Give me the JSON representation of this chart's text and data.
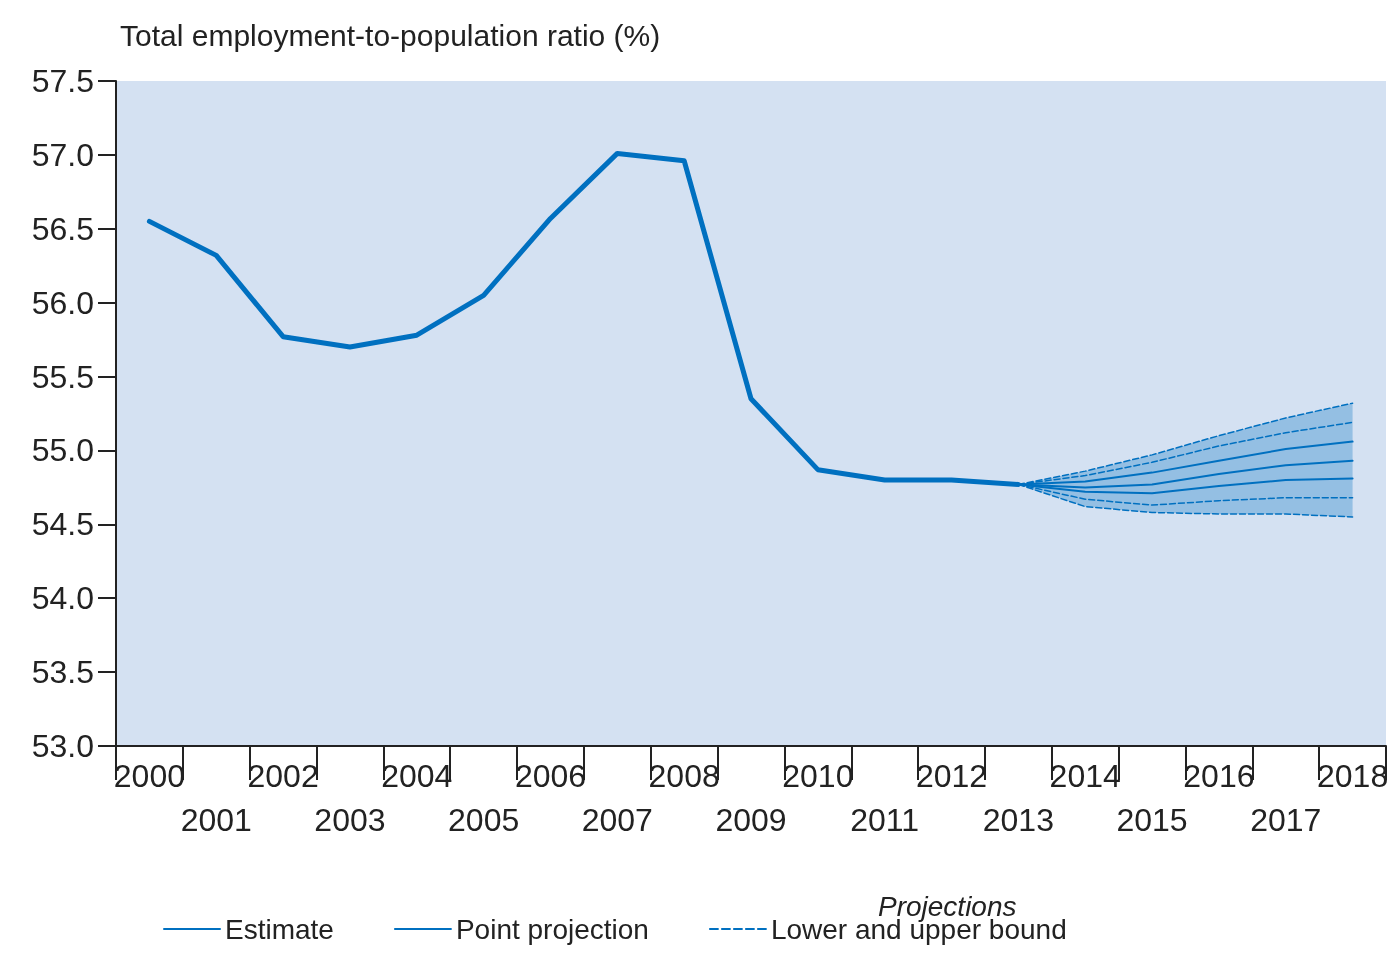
{
  "chart_data": {
    "type": "line",
    "ylabel": "Total employment-to-population ratio (%)",
    "categories": [
      "2000",
      "2001",
      "2002",
      "2003",
      "2004",
      "2005",
      "2006",
      "2007",
      "2008",
      "2009",
      "2010",
      "2011",
      "2012",
      "2013",
      "2014",
      "2015",
      "2016",
      "2017",
      "2018"
    ],
    "ylim": [
      53.0,
      57.5
    ],
    "yticks": [
      {
        "value": 53,
        "label": "53.0"
      },
      {
        "value": 53.5,
        "label": "53.5"
      },
      {
        "value": 54,
        "label": "54.0"
      },
      {
        "value": 54.5,
        "label": "54.5"
      },
      {
        "value": 55,
        "label": "55.0"
      },
      {
        "value": 55.5,
        "label": "55.5"
      },
      {
        "value": 56,
        "label": "56.0"
      },
      {
        "value": 56.5,
        "label": "56.5"
      },
      {
        "value": 57,
        "label": "57.0"
      },
      {
        "value": 57.5,
        "label": "57.5"
      }
    ],
    "grid": false,
    "legend": "bottom",
    "legend_title": "Projections",
    "series": [
      {
        "name": "Estimate",
        "color": "#0070c0",
        "values": [
          56.55,
          56.32,
          55.77,
          55.7,
          55.78,
          56.05,
          56.57,
          57.01,
          56.96,
          55.35,
          54.87,
          54.8,
          54.8,
          54.77,
          null,
          null,
          null,
          null,
          null
        ]
      },
      {
        "name": "Point projection",
        "color": "#0070c0",
        "values": [
          null,
          null,
          null,
          null,
          null,
          null,
          null,
          null,
          null,
          null,
          null,
          null,
          null,
          54.77,
          54.75,
          54.77,
          54.84,
          54.9,
          54.93
        ],
        "lower": [
          null,
          null,
          null,
          null,
          null,
          null,
          null,
          null,
          null,
          null,
          null,
          null,
          null,
          54.77,
          54.62,
          54.58,
          54.57,
          54.57,
          54.55
        ],
        "upper": [
          null,
          null,
          null,
          null,
          null,
          null,
          null,
          null,
          null,
          null,
          null,
          null,
          null,
          54.77,
          54.86,
          54.97,
          55.1,
          55.22,
          55.32
        ]
      },
      {
        "name": "Lower and upper bound",
        "color": "#0070c0",
        "line_style": "dashed",
        "values": [
          null,
          null,
          null,
          null,
          null,
          null,
          null,
          null,
          null,
          null,
          null,
          null,
          null,
          54.77,
          54.86,
          54.97,
          55.1,
          55.22,
          55.32
        ]
      },
      {
        "color": "#0070c0",
        "line_style": "dashed",
        "values": [
          null,
          null,
          null,
          null,
          null,
          null,
          null,
          null,
          null,
          null,
          null,
          null,
          null,
          54.77,
          54.62,
          54.58,
          54.57,
          54.57,
          54.55
        ]
      },
      {
        "color": "#0070c0",
        "line_style": "dashed",
        "values": [
          null,
          null,
          null,
          null,
          null,
          null,
          null,
          null,
          null,
          null,
          null,
          null,
          null,
          54.77,
          54.83,
          54.92,
          55.03,
          55.12,
          55.19
        ]
      },
      {
        "color": "#0070c0",
        "line_style": "dashed",
        "values": [
          null,
          null,
          null,
          null,
          null,
          null,
          null,
          null,
          null,
          null,
          null,
          null,
          null,
          54.77,
          54.67,
          54.63,
          54.66,
          54.68,
          54.68
        ]
      },
      {
        "color": "#0070c0",
        "values": [
          null,
          null,
          null,
          null,
          null,
          null,
          null,
          null,
          null,
          null,
          null,
          null,
          null,
          54.77,
          54.79,
          54.85,
          54.93,
          55.01,
          55.06
        ]
      },
      {
        "color": "#0070c0",
        "values": [
          null,
          null,
          null,
          null,
          null,
          null,
          null,
          null,
          null,
          null,
          null,
          null,
          null,
          54.77,
          54.72,
          54.71,
          54.76,
          54.8,
          54.81
        ]
      }
    ]
  }
}
